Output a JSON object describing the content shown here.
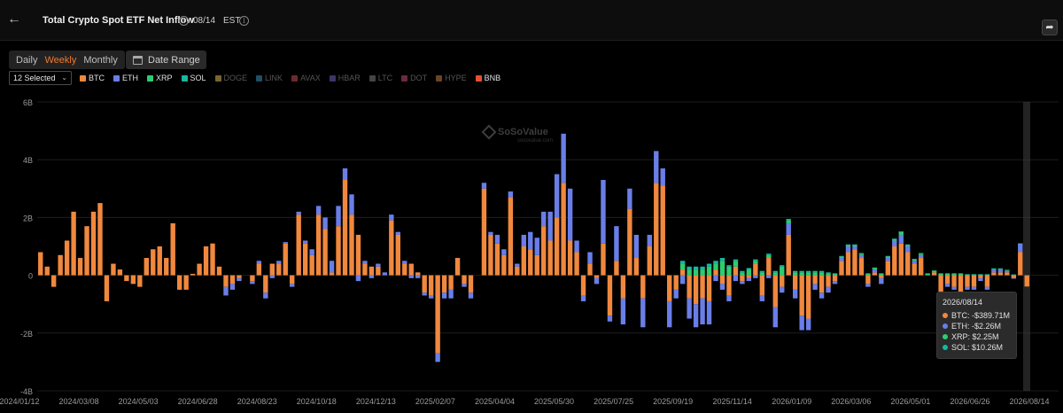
{
  "header": {
    "title": "Total Crypto Spot ETF Net Inflow",
    "date": "08/14",
    "timezone": "EST"
  },
  "toolbar": {
    "periods": [
      "Daily",
      "Weekly",
      "Monthly"
    ],
    "active_period": "Weekly",
    "date_range_label": "Date Range",
    "selector_label": "12 Selected"
  },
  "legend": [
    {
      "name": "BTC",
      "color": "#f0883e",
      "active": true
    },
    {
      "name": "ETH",
      "color": "#6a7ee8",
      "active": true
    },
    {
      "name": "XRP",
      "color": "#2ecc71",
      "active": true
    },
    {
      "name": "SOL",
      "color": "#16b8a0",
      "active": true
    },
    {
      "name": "DOGE",
      "color": "#7a6530",
      "active": false
    },
    {
      "name": "LINK",
      "color": "#1f4f66",
      "active": false
    },
    {
      "name": "AVAX",
      "color": "#6e2a2a",
      "active": false
    },
    {
      "name": "HBAR",
      "color": "#3d3566",
      "active": false
    },
    {
      "name": "LTC",
      "color": "#444444",
      "active": false
    },
    {
      "name": "DOT",
      "color": "#6a2a40",
      "active": false
    },
    {
      "name": "HYPE",
      "color": "#6a4425",
      "active": false
    },
    {
      "name": "BNB",
      "color": "#e8502a",
      "active": true
    }
  ],
  "watermark": {
    "brand": "SoSoValue",
    "sub": "sosovalue.com"
  },
  "tooltip": {
    "date": "2026/08/14",
    "rows": [
      {
        "label": "BTC: -$389.71M",
        "color": "#f0883e"
      },
      {
        "label": "ETH: -$2.26M",
        "color": "#6a7ee8"
      },
      {
        "label": "XRP: $2.25M",
        "color": "#2ecc71"
      },
      {
        "label": "SOL: $10.26M",
        "color": "#16b8a0"
      }
    ]
  },
  "chart_data": {
    "type": "bar",
    "stacked": true,
    "unit": "B",
    "ylim": [
      -4,
      6
    ],
    "yticks": [
      "6B",
      "4B",
      "2B",
      "0",
      "-2B",
      "-4B"
    ],
    "ytick_values": [
      6,
      4,
      2,
      0,
      -2,
      -4
    ],
    "xtick_labels": [
      "2024/01/12",
      "2024/03/08",
      "2024/05/03",
      "2024/06/28",
      "2024/08/23",
      "2024/10/18",
      "2024/12/13",
      "2025/02/07",
      "2025/04/04",
      "2025/05/30",
      "2025/07/25",
      "2025/09/19",
      "2025/11/14",
      "2026/01/09",
      "2026/03/06",
      "2026/05/01",
      "2026/06/26",
      "2026/08/14"
    ],
    "series": [
      {
        "name": "BTC",
        "color": "#f0883e",
        "values": [
          0.8,
          0.3,
          -0.4,
          0.7,
          1.2,
          2.2,
          0.6,
          1.7,
          2.2,
          2.5,
          -0.9,
          0.4,
          0.2,
          -0.2,
          -0.3,
          -0.4,
          0.6,
          0.9,
          1.0,
          0.6,
          1.8,
          -0.5,
          -0.5,
          0.05,
          0.4,
          1.0,
          1.1,
          0.3,
          -0.4,
          -0.3,
          -0.1,
          0.0,
          -0.2,
          0.4,
          -0.6,
          0.4,
          0.4,
          1.1,
          -0.3,
          2.1,
          1.1,
          0.7,
          2.1,
          1.6,
          0.1,
          1.7,
          3.3,
          2.1,
          1.4,
          0.4,
          0.3,
          0.3,
          0.0,
          1.9,
          1.4,
          0.4,
          0.4,
          0.1,
          -0.6,
          -0.7,
          -2.7,
          -0.6,
          -0.5,
          0.6,
          -0.3,
          -0.6,
          0.0,
          3.0,
          1.4,
          1.1,
          0.7,
          2.7,
          0.3,
          1.0,
          0.9,
          0.7,
          1.7,
          1.2,
          2.0,
          3.2,
          1.2,
          0.8,
          -0.7,
          0.4,
          -0.1,
          1.1,
          -1.4,
          0.5,
          -0.8,
          2.3,
          0.6,
          -0.8,
          1.0,
          3.2,
          3.1,
          -0.9,
          -0.5,
          0.2,
          -0.8,
          -1.0,
          -0.8,
          -0.9,
          0.2,
          -0.3,
          -0.7,
          0.3,
          -0.2,
          -0.1,
          0.4,
          -0.7,
          0.6,
          -1.1,
          -0.4,
          1.4,
          -0.5,
          -1.4,
          -1.5,
          -0.3,
          -0.6,
          -0.4,
          -0.2,
          0.5,
          0.8,
          0.9,
          0.6,
          -0.3,
          0.1,
          -0.1,
          0.5,
          1.0,
          1.1,
          0.8,
          0.4,
          0.6,
          0.0,
          0.1,
          -1.1,
          -0.3,
          -0.4,
          -0.6,
          -0.4,
          -0.4,
          -0.1,
          -0.4,
          0.1,
          0.1,
          0.1,
          -0.1,
          0.8,
          -0.39
        ]
      },
      {
        "name": "ETH",
        "color": "#6a7ee8",
        "values": [
          0,
          0,
          0,
          0,
          0,
          0,
          0,
          0,
          0,
          0,
          0,
          0,
          0,
          0,
          0,
          0,
          0,
          0,
          0,
          0,
          0,
          0,
          0,
          0,
          0,
          0,
          0,
          0,
          -0.3,
          -0.2,
          -0.1,
          0,
          -0.1,
          0.1,
          -0.2,
          -0.1,
          0.1,
          0.05,
          -0.1,
          0.1,
          0.1,
          0.2,
          0.3,
          0.4,
          0.4,
          0.7,
          0.4,
          0.7,
          -0.2,
          0.1,
          -0.1,
          0.1,
          0.1,
          0.2,
          0.1,
          0.1,
          -0.1,
          -0.1,
          -0.1,
          -0.1,
          -0.3,
          -0.2,
          -0.3,
          0,
          -0.1,
          -0.2,
          0,
          0.2,
          0.1,
          0.3,
          0.2,
          0.2,
          0.1,
          0.4,
          0.6,
          0.6,
          0.5,
          1.0,
          1.5,
          1.7,
          1.8,
          0.4,
          -0.2,
          0.4,
          -0.2,
          2.2,
          -0.2,
          1.2,
          -0.9,
          0.7,
          0.8,
          -1.0,
          0.4,
          1.1,
          0.6,
          -0.9,
          -0.3,
          -0.3,
          -0.7,
          -0.8,
          -0.9,
          -0.8,
          -0.2,
          -0.2,
          -0.2,
          -0.2,
          -0.1,
          -0.1,
          -0.1,
          -0.2,
          -0.1,
          -0.7,
          -0.2,
          0.4,
          -0.3,
          -0.5,
          -0.4,
          -0.2,
          -0.2,
          -0.2,
          -0.1,
          0.1,
          0.2,
          0.1,
          0.1,
          -0.1,
          0.1,
          -0.2,
          0.1,
          0.2,
          0.3,
          0.2,
          0.1,
          0.1,
          0,
          0,
          -0.2,
          -0.1,
          -0.1,
          -0.1,
          -0.1,
          -0.1,
          -0.1,
          -0.1,
          0.1,
          0.1,
          0.05,
          -0.02,
          0.3,
          0
        ]
      },
      {
        "name": "XRP",
        "color": "#2ecc71",
        "values": [
          0,
          0,
          0,
          0,
          0,
          0,
          0,
          0,
          0,
          0,
          0,
          0,
          0,
          0,
          0,
          0,
          0,
          0,
          0,
          0,
          0,
          0,
          0,
          0,
          0,
          0,
          0,
          0,
          0,
          0,
          0,
          0,
          0,
          0,
          0,
          0,
          0,
          0,
          0,
          0,
          0,
          0,
          0,
          0,
          0,
          0,
          0,
          0,
          0,
          0,
          0,
          0,
          0,
          0,
          0,
          0,
          0,
          0,
          0,
          0,
          0,
          0,
          0,
          0,
          0,
          0,
          0,
          0,
          0,
          0,
          0,
          0,
          0,
          0,
          0,
          0,
          0,
          0,
          0,
          0,
          0,
          0,
          0,
          0,
          0,
          0,
          0,
          0,
          0,
          0,
          0,
          0,
          0,
          0,
          0,
          0,
          0,
          0.2,
          0.2,
          0.2,
          0.2,
          0.3,
          0.2,
          0.5,
          0.3,
          0.2,
          0.1,
          0.2,
          0.1,
          0.1,
          0.1,
          0.1,
          0.3,
          0.1,
          0.1,
          0.1,
          0.1,
          0.1,
          0.1,
          0.05,
          0.05,
          0.05,
          0.05,
          0.05,
          0.05,
          0.05,
          0.05,
          0.05,
          0.05,
          0.05,
          0.1,
          0.05,
          0.05,
          0.05,
          0.05,
          0.05,
          0.05,
          0.05,
          0.05,
          0.05,
          0.02,
          0.02,
          0.02,
          0.02,
          0.02,
          0.02,
          0.02,
          0.02,
          0.002
        ]
      },
      {
        "name": "SOL",
        "color": "#16b8a0",
        "values": [
          0,
          0,
          0,
          0,
          0,
          0,
          0,
          0,
          0,
          0,
          0,
          0,
          0,
          0,
          0,
          0,
          0,
          0,
          0,
          0,
          0,
          0,
          0,
          0,
          0,
          0,
          0,
          0,
          0,
          0,
          0,
          0,
          0,
          0,
          0,
          0,
          0,
          0,
          0,
          0,
          0,
          0,
          0,
          0,
          0,
          0,
          0,
          0,
          0,
          0,
          0,
          0,
          0,
          0,
          0,
          0,
          0,
          0,
          0,
          0,
          0,
          0,
          0,
          0,
          0,
          0,
          0,
          0,
          0,
          0,
          0,
          0,
          0,
          0,
          0,
          0,
          0,
          0,
          0,
          0,
          0,
          0,
          0,
          0,
          0,
          0,
          0,
          0,
          0,
          0,
          0,
          0,
          0,
          0,
          0,
          0,
          0,
          0.1,
          0.1,
          0.1,
          0.1,
          0.1,
          0.1,
          0.1,
          0.05,
          0.05,
          0.05,
          0.05,
          0.05,
          0.05,
          0.05,
          0.05,
          0.05,
          0.05,
          0.05,
          0.05,
          0.05,
          0.05,
          0.05,
          0.05,
          0.02,
          0.02,
          0.02,
          0.02,
          0.02,
          0.02,
          0.02,
          0.02,
          0.02,
          0.02,
          0.02,
          0.02,
          0.02,
          0.02,
          0.02,
          0.02,
          0.02,
          0.02,
          0.02,
          0.02,
          0.02,
          0.02,
          0.02,
          0.02,
          0.02,
          0.02,
          0.02,
          0.01
        ]
      }
    ]
  }
}
